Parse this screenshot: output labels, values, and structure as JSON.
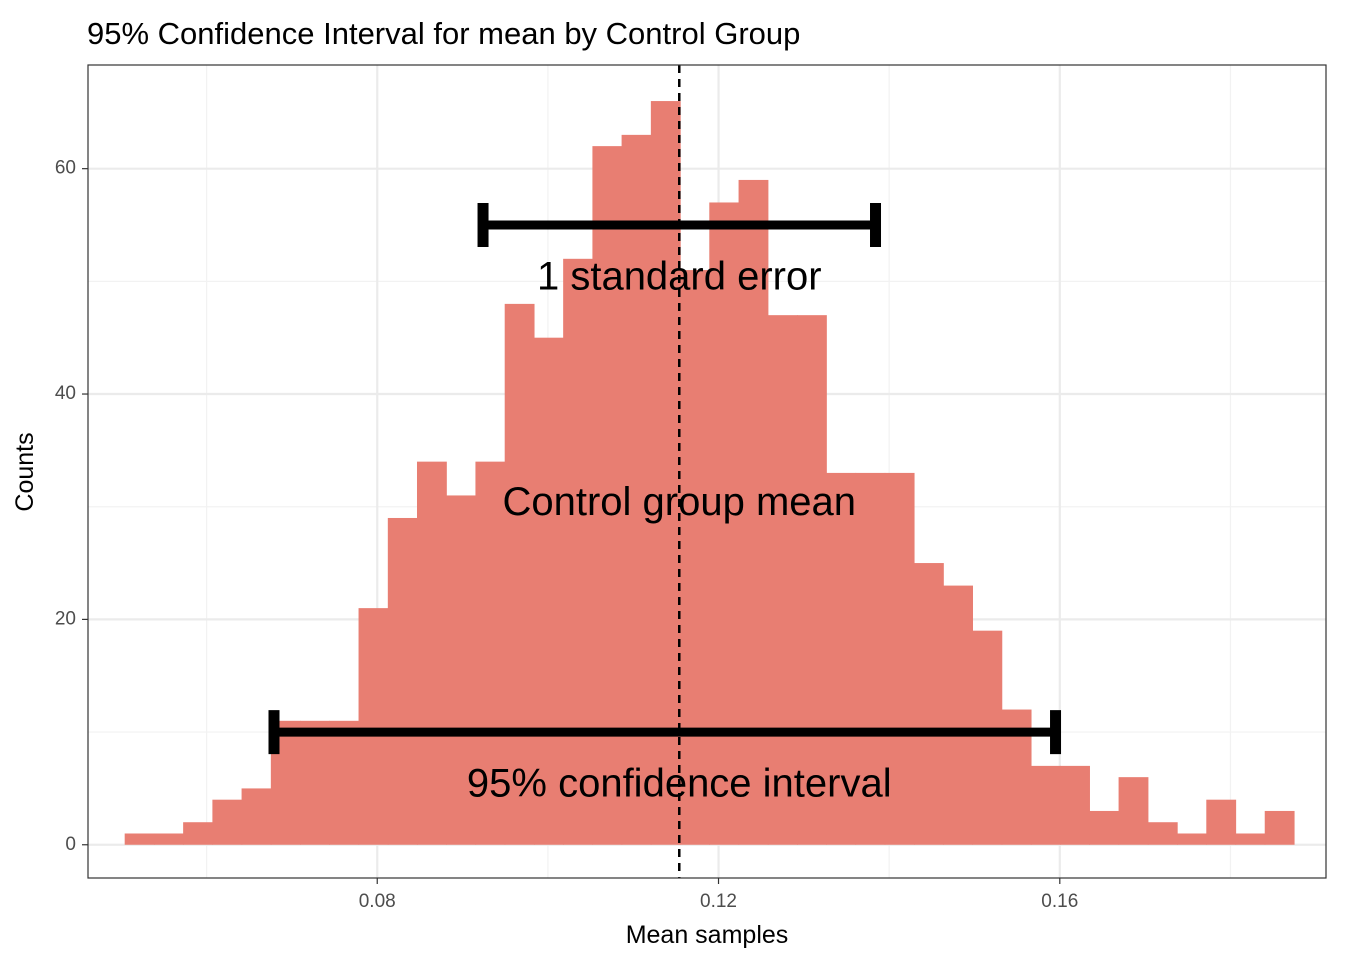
{
  "chart_data": {
    "type": "bar",
    "title": "95% Confidence Interval for mean by Control Group",
    "xlabel": "Mean samples",
    "ylabel": "Counts",
    "xlim": [
      0.0461,
      0.1912
    ],
    "ylim": [
      -2.95,
      69.2
    ],
    "x_ticks": [
      0.08,
      0.12,
      0.16
    ],
    "x_tick_labels": [
      "0.08",
      "0.12",
      "0.16"
    ],
    "x_minor_ticks": [
      0.06,
      0.1,
      0.14,
      0.18
    ],
    "y_ticks": [
      0,
      20,
      40,
      60
    ],
    "y_tick_labels": [
      "0",
      "20",
      "40",
      "60"
    ],
    "y_minor_ticks": [
      10,
      30,
      50
    ],
    "grid": true,
    "bar_color": "#e87e72",
    "bin_width": 0.003426,
    "bins": [
      {
        "x0": 0.0504,
        "count": 1
      },
      {
        "x0": 0.05383,
        "count": 1
      },
      {
        "x0": 0.05725,
        "count": 2
      },
      {
        "x0": 0.06068,
        "count": 4
      },
      {
        "x0": 0.0641,
        "count": 5
      },
      {
        "x0": 0.06753,
        "count": 11
      },
      {
        "x0": 0.07096,
        "count": 11
      },
      {
        "x0": 0.07438,
        "count": 11
      },
      {
        "x0": 0.07781,
        "count": 21
      },
      {
        "x0": 0.08124,
        "count": 29
      },
      {
        "x0": 0.08466,
        "count": 34
      },
      {
        "x0": 0.08809,
        "count": 31
      },
      {
        "x0": 0.09151,
        "count": 34
      },
      {
        "x0": 0.09494,
        "count": 48
      },
      {
        "x0": 0.09837,
        "count": 45
      },
      {
        "x0": 0.10179,
        "count": 52
      },
      {
        "x0": 0.10522,
        "count": 62
      },
      {
        "x0": 0.10864,
        "count": 63
      },
      {
        "x0": 0.11207,
        "count": 66
      },
      {
        "x0": 0.1155,
        "count": 51
      },
      {
        "x0": 0.11892,
        "count": 57
      },
      {
        "x0": 0.12235,
        "count": 59
      },
      {
        "x0": 0.12578,
        "count": 47
      },
      {
        "x0": 0.1292,
        "count": 47
      },
      {
        "x0": 0.13263,
        "count": 33
      },
      {
        "x0": 0.13605,
        "count": 33
      },
      {
        "x0": 0.13948,
        "count": 33
      },
      {
        "x0": 0.14291,
        "count": 25
      },
      {
        "x0": 0.14633,
        "count": 23
      },
      {
        "x0": 0.14976,
        "count": 19
      },
      {
        "x0": 0.15319,
        "count": 12
      },
      {
        "x0": 0.15661,
        "count": 7
      },
      {
        "x0": 0.16004,
        "count": 7
      },
      {
        "x0": 0.16346,
        "count": 3
      },
      {
        "x0": 0.16689,
        "count": 6
      },
      {
        "x0": 0.17032,
        "count": 2
      },
      {
        "x0": 0.17374,
        "count": 1
      },
      {
        "x0": 0.17717,
        "count": 4
      },
      {
        "x0": 0.18059,
        "count": 1
      },
      {
        "x0": 0.18402,
        "count": 3
      }
    ],
    "mean_line": {
      "x": 0.1154,
      "style": "dashed",
      "color": "#000000"
    },
    "error_bars": [
      {
        "name": "standard_error",
        "x_min": 0.0924,
        "x_max": 0.1384,
        "y": 55
      },
      {
        "name": "confidence_interval",
        "x_min": 0.0679,
        "x_max": 0.1595,
        "y": 10
      }
    ],
    "annotations": [
      {
        "name": "standard_error",
        "text": "1 standard error",
        "x": 0.1154,
        "y": 50.2
      },
      {
        "name": "mean",
        "text": "Control group mean",
        "x": 0.1154,
        "y": 30.2
      },
      {
        "name": "confidence_interval",
        "text": "95% confidence interval",
        "x": 0.1154,
        "y": 5.2
      }
    ]
  }
}
